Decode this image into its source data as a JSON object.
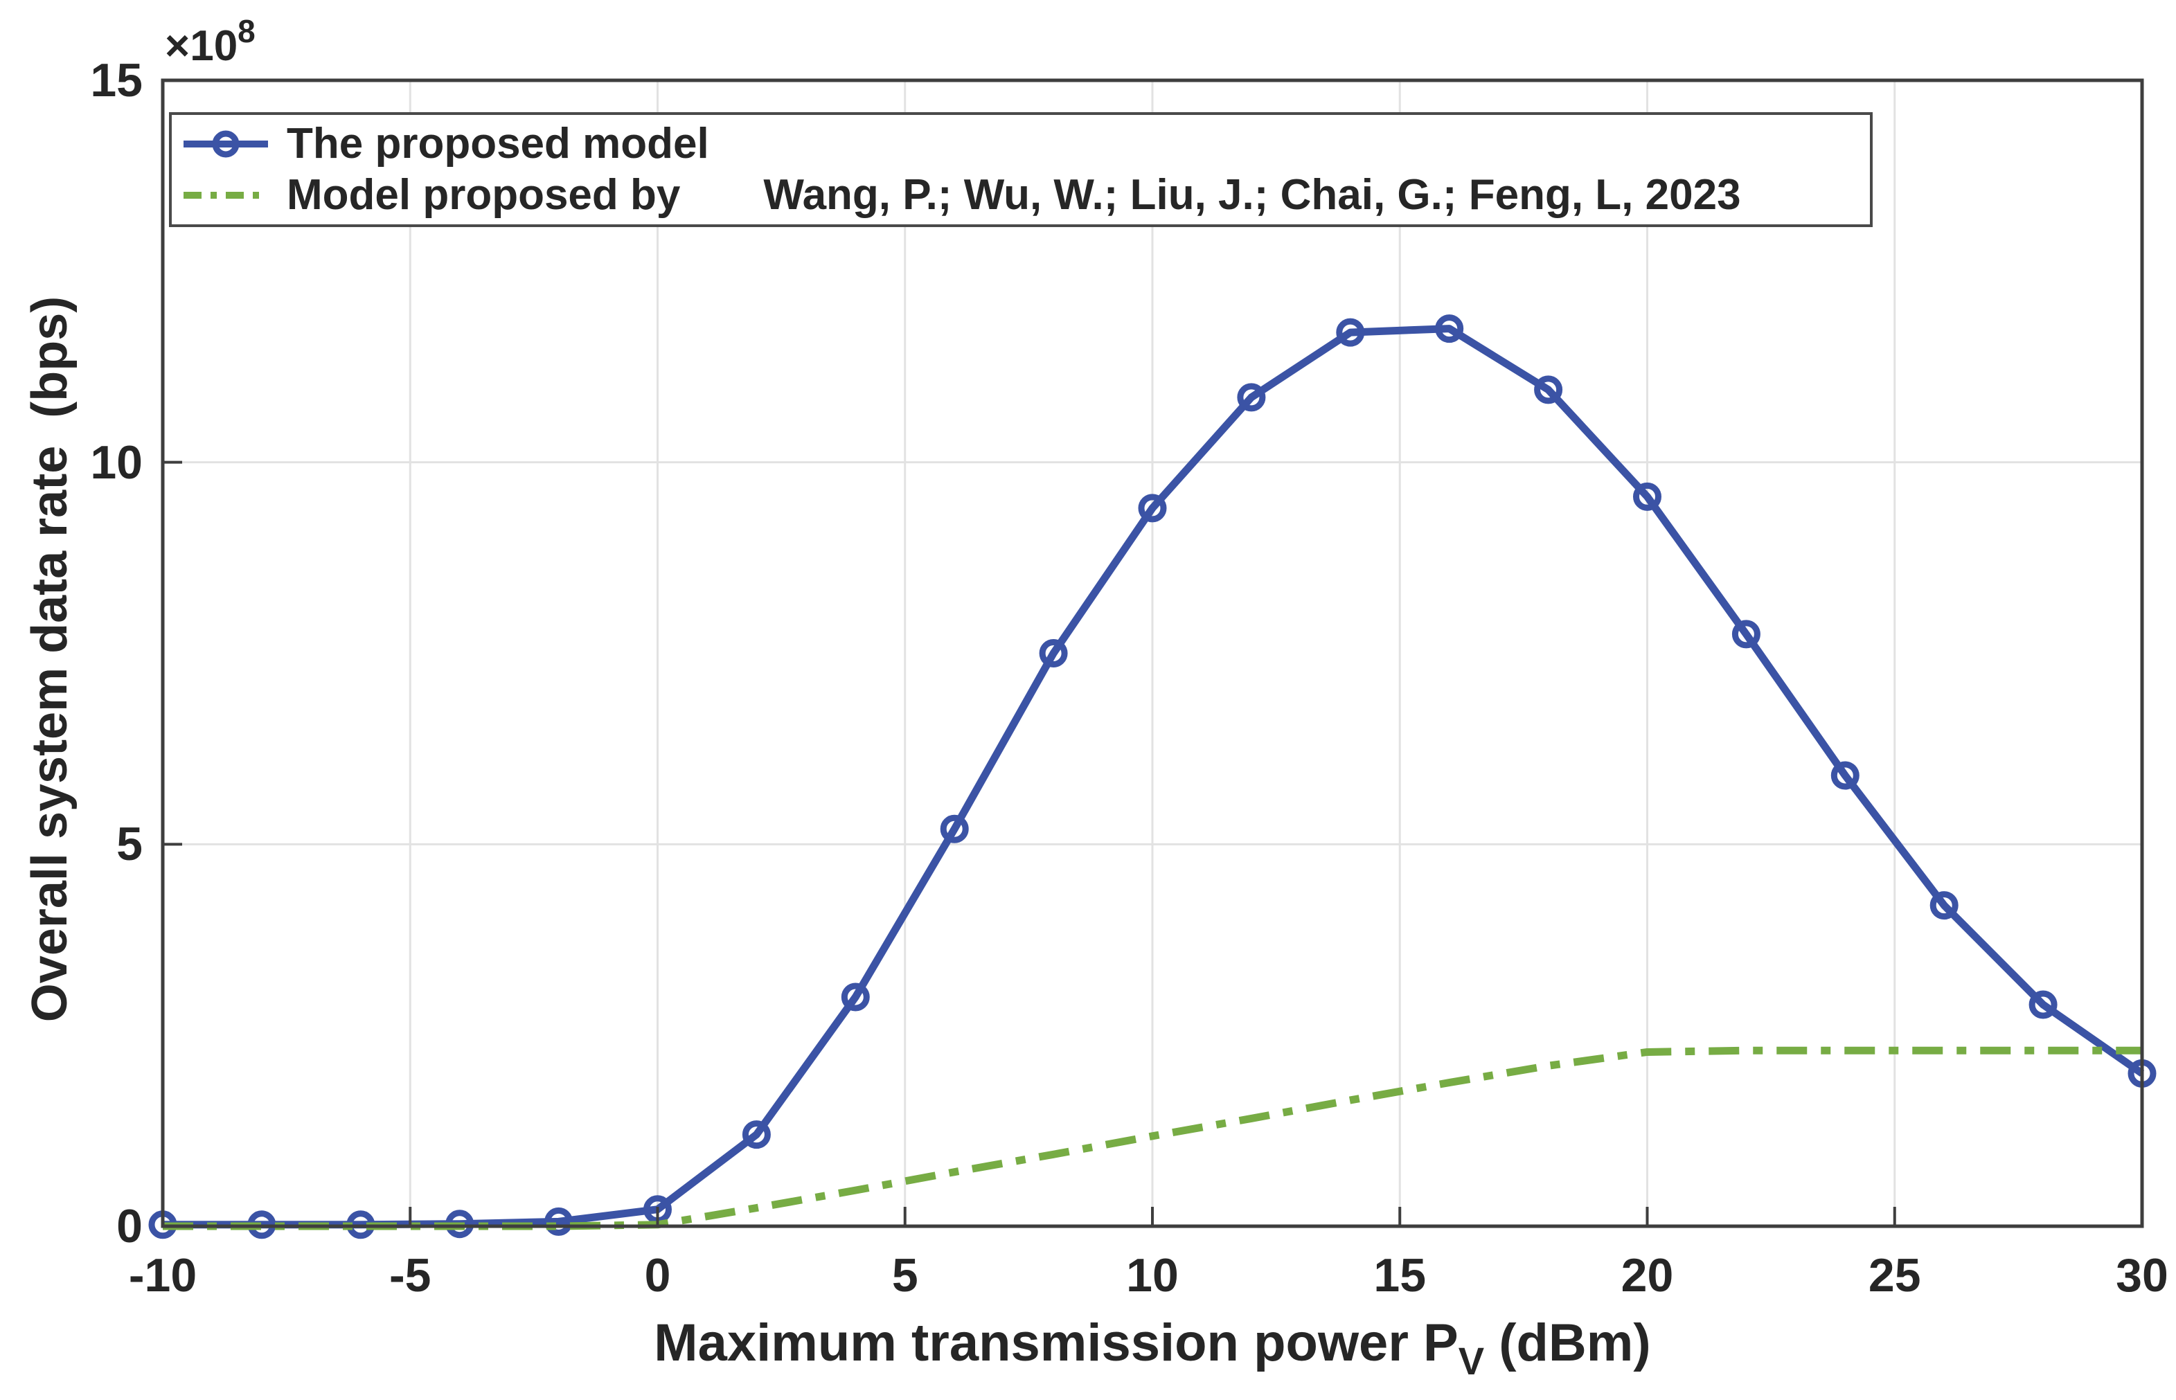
{
  "figure": {
    "y_exponent": {
      "prefix": "×10",
      "sup": "8"
    },
    "xlabel": {
      "prefix": "Maximum transmission power P",
      "sub": "V",
      "suffix": " (dBm)"
    },
    "ylabel": "Overall system data rate  (bps)"
  },
  "legend": {
    "entries": [
      {
        "label": "The proposed model"
      },
      {
        "label_part1": "Model proposed by",
        "label_part2": "Wang, P.; Wu, W.; Liu, J.; Chai, G.; Feng, L, 2023"
      }
    ]
  },
  "colors": {
    "proposed_series": "#3B53A5",
    "baseline_series": "#77AC44",
    "axis": "#3e3e3e",
    "grid": "#e2e2e2",
    "text": "#262626",
    "legend_border": "#4a4a4a",
    "background": "#ffffff"
  },
  "chart_data": {
    "type": "line",
    "title": "",
    "xlabel": "Maximum transmission power P_V (dBm)",
    "ylabel": "Overall system data rate (bps)",
    "y_unit": "×10^8 bps",
    "xlim": [
      -10,
      30
    ],
    "ylim_e8": [
      0,
      15
    ],
    "x_ticks": [
      -10,
      -5,
      0,
      5,
      10,
      15,
      20,
      25,
      30
    ],
    "y_ticks_e8": [
      0,
      5,
      10,
      15
    ],
    "grid": true,
    "legend_position": "northwest",
    "x": [
      -10,
      -8,
      -6,
      -4,
      -2,
      0,
      2,
      4,
      6,
      8,
      10,
      12,
      14,
      16,
      18,
      20,
      22,
      24,
      26,
      28,
      30
    ],
    "series": [
      {
        "name": "The proposed model",
        "color": "#3B53A5",
        "line_style": "solid",
        "marker": "o",
        "values_e8": [
          0.02,
          0.02,
          0.02,
          0.03,
          0.06,
          0.22,
          1.2,
          3.0,
          5.2,
          7.5,
          9.4,
          10.85,
          11.7,
          11.75,
          10.95,
          9.55,
          7.75,
          5.9,
          4.2,
          2.9,
          2.0
        ]
      },
      {
        "name": "Model proposed by Wang, P.; Wu, W.; Liu, J.; Chai, G.; Feng, L, 2023",
        "color": "#77AC44",
        "line_style": "dash-dot",
        "marker": "none",
        "values_e8": [
          0,
          0,
          0,
          0,
          0,
          0.02,
          0.24,
          0.47,
          0.71,
          0.94,
          1.18,
          1.41,
          1.65,
          1.88,
          2.1,
          2.28,
          2.3,
          2.3,
          2.3,
          2.3,
          2.3
        ]
      }
    ]
  }
}
